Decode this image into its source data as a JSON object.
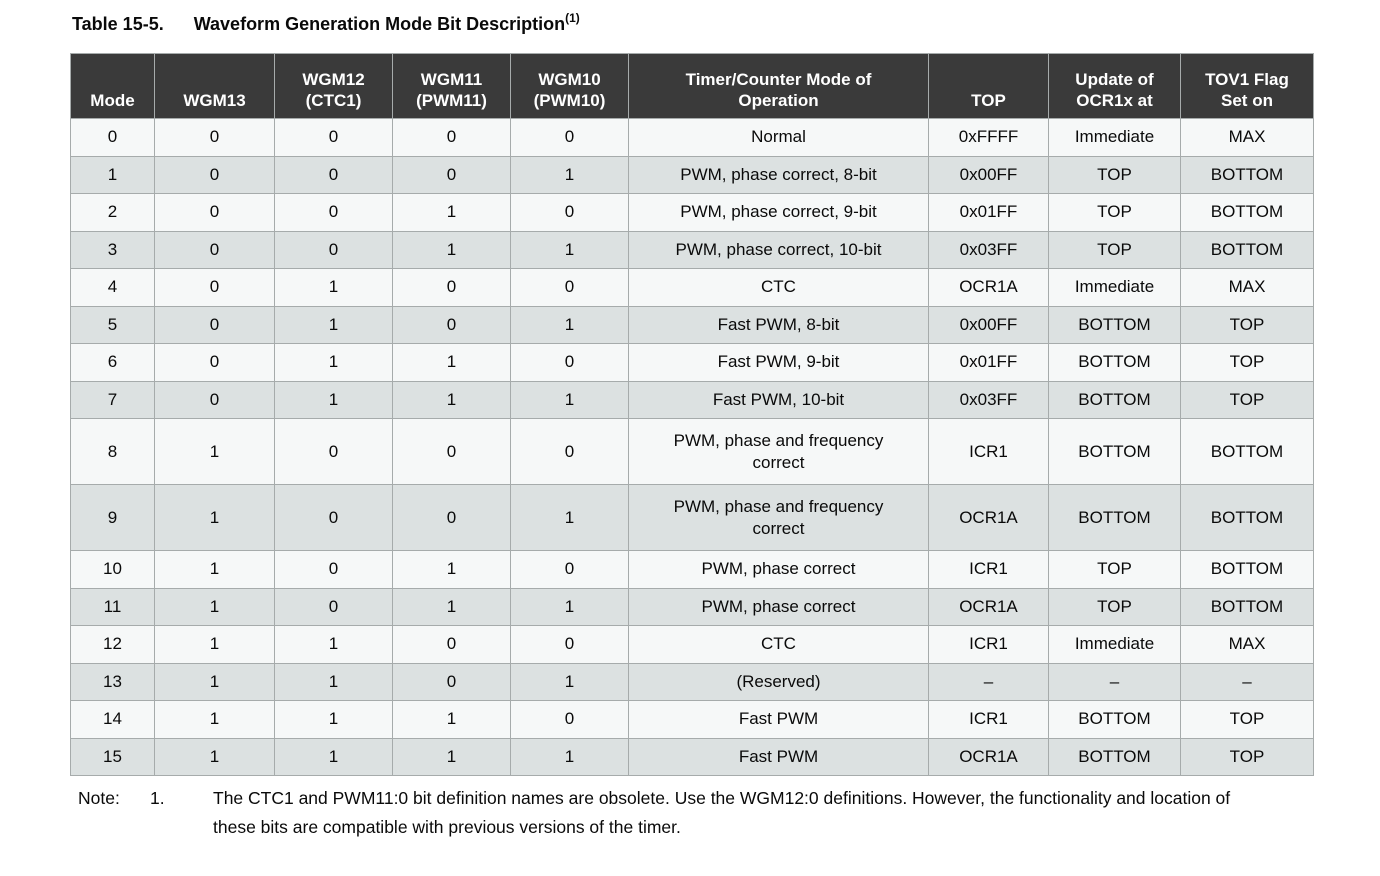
{
  "title": {
    "label": "Table 15-5.",
    "text": "Waveform Generation Mode Bit Description",
    "superscript": "(1)"
  },
  "table": {
    "columns": [
      "Mode",
      "WGM13",
      "WGM12\n(CTC1)",
      "WGM11\n(PWM11)",
      "WGM10\n(PWM10)",
      "Timer/Counter Mode of\nOperation",
      "TOP",
      "Update of\nOCR1x at",
      "TOV1 Flag\nSet on"
    ],
    "rows": [
      [
        "0",
        "0",
        "0",
        "0",
        "0",
        "Normal",
        "0xFFFF",
        "Immediate",
        "MAX"
      ],
      [
        "1",
        "0",
        "0",
        "0",
        "1",
        "PWM, phase correct, 8-bit",
        "0x00FF",
        "TOP",
        "BOTTOM"
      ],
      [
        "2",
        "0",
        "0",
        "1",
        "0",
        "PWM, phase correct, 9-bit",
        "0x01FF",
        "TOP",
        "BOTTOM"
      ],
      [
        "3",
        "0",
        "0",
        "1",
        "1",
        "PWM, phase correct, 10-bit",
        "0x03FF",
        "TOP",
        "BOTTOM"
      ],
      [
        "4",
        "0",
        "1",
        "0",
        "0",
        "CTC",
        "OCR1A",
        "Immediate",
        "MAX"
      ],
      [
        "5",
        "0",
        "1",
        "0",
        "1",
        "Fast PWM, 8-bit",
        "0x00FF",
        "BOTTOM",
        "TOP"
      ],
      [
        "6",
        "0",
        "1",
        "1",
        "0",
        "Fast PWM, 9-bit",
        "0x01FF",
        "BOTTOM",
        "TOP"
      ],
      [
        "7",
        "0",
        "1",
        "1",
        "1",
        "Fast PWM, 10-bit",
        "0x03FF",
        "BOTTOM",
        "TOP"
      ],
      [
        "8",
        "1",
        "0",
        "0",
        "0",
        "PWM, phase and frequency\ncorrect",
        "ICR1",
        "BOTTOM",
        "BOTTOM"
      ],
      [
        "9",
        "1",
        "0",
        "0",
        "1",
        "PWM, phase and frequency\ncorrect",
        "OCR1A",
        "BOTTOM",
        "BOTTOM"
      ],
      [
        "10",
        "1",
        "0",
        "1",
        "0",
        "PWM, phase correct",
        "ICR1",
        "TOP",
        "BOTTOM"
      ],
      [
        "11",
        "1",
        "0",
        "1",
        "1",
        "PWM, phase correct",
        "OCR1A",
        "TOP",
        "BOTTOM"
      ],
      [
        "12",
        "1",
        "1",
        "0",
        "0",
        "CTC",
        "ICR1",
        "Immediate",
        "MAX"
      ],
      [
        "13",
        "1",
        "1",
        "0",
        "1",
        "(Reserved)",
        "–",
        "–",
        "–"
      ],
      [
        "14",
        "1",
        "1",
        "1",
        "0",
        "Fast PWM",
        "ICR1",
        "BOTTOM",
        "TOP"
      ],
      [
        "15",
        "1",
        "1",
        "1",
        "1",
        "Fast PWM",
        "OCR1A",
        "BOTTOM",
        "TOP"
      ]
    ]
  },
  "note": {
    "label": "Note:",
    "number": "1.",
    "text": "The CTC1 and PWM11:0 bit definition names are obsolete. Use the WGM12:0 definitions. However, the functionality and location of these bits are compatible with previous versions of the timer."
  },
  "colors": {
    "header_bg": "#3a3a3a",
    "header_text": "#ffffff",
    "row_light": "#f6f8f8",
    "row_gray": "#dce1e1",
    "border": "#a6abab"
  }
}
